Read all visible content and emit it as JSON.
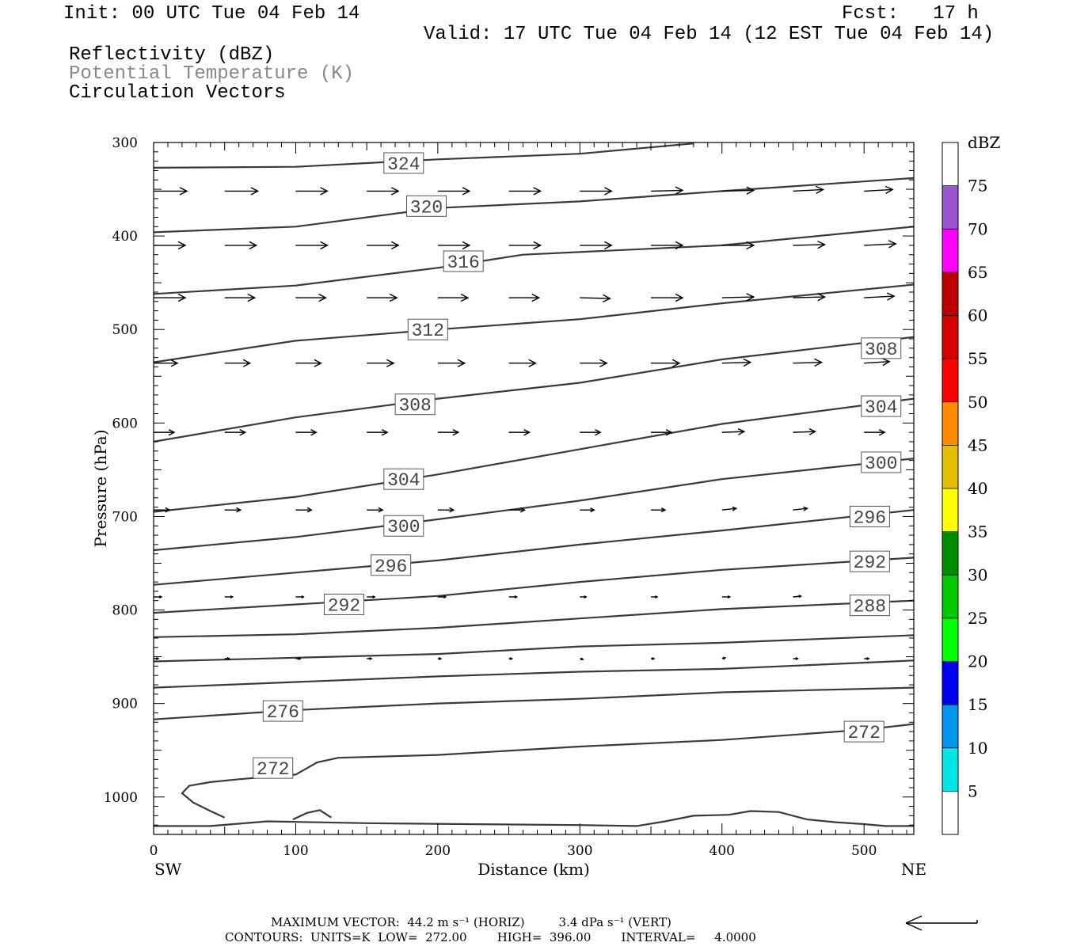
{
  "header": {
    "init": "Init: 00 UTC Tue 04 Feb 14",
    "fcst": "Fcst:   17 h",
    "valid": "Valid: 17 UTC Tue 04 Feb 14 (12 EST Tue 04 Feb 14)",
    "field1": "Reflectivity (dBZ)",
    "field2": "Potential Temperature (K)",
    "field3": "Circulation Vectors"
  },
  "footer": {
    "max_vector": "MAXIMUM VECTOR:  44.2 m s⁻¹ (HORIZ)         3.4 dPa s⁻¹ (VERT)",
    "contours": "CONTOURS:  UNITS=K  LOW=  272.00        HIGH=  396.00        INTERVAL=     4.0000"
  },
  "colors": {
    "contour": "#3a3a3a",
    "label_gray": "#888888"
  },
  "chart_data": {
    "type": "cross-section",
    "xlabel": "Distance (km)",
    "ylabel": "Pressure (hPa)",
    "x_left_end": "SW",
    "x_right_end": "NE",
    "xlim": [
      0,
      535
    ],
    "ylim": [
      1040,
      300
    ],
    "x_ticks": [
      0,
      100,
      200,
      300,
      400,
      500
    ],
    "y_ticks": [
      300,
      400,
      500,
      600,
      700,
      800,
      900,
      1000
    ],
    "colorbar": {
      "unit": "dBZ",
      "labels": [
        "5",
        "10",
        "15",
        "20",
        "25",
        "30",
        "35",
        "40",
        "45",
        "50",
        "55",
        "60",
        "65",
        "70",
        "75"
      ],
      "colors": [
        "#ffffff",
        "#00e5e5",
        "#0096f0",
        "#0000f0",
        "#00ff00",
        "#00c800",
        "#008c00",
        "#ffff00",
        "#e5be00",
        "#ff8c00",
        "#ff0000",
        "#d70000",
        "#bb0000",
        "#ff00ff",
        "#9955cc",
        "#ffffff"
      ]
    },
    "contours": [
      {
        "label": "324",
        "points": [
          [
            0,
            327
          ],
          [
            100,
            326
          ],
          [
            200,
            318
          ],
          [
            300,
            312
          ],
          [
            380,
            301
          ]
        ],
        "labels": [
          {
            "text": "324",
            "x": 176,
            "p": 322
          }
        ]
      },
      {
        "label": "320",
        "points": [
          [
            0,
            396
          ],
          [
            100,
            390
          ],
          [
            200,
            370
          ],
          [
            300,
            363
          ],
          [
            400,
            352
          ],
          [
            535,
            338
          ]
        ],
        "labels": [
          {
            "text": "320",
            "x": 192,
            "p": 368
          }
        ]
      },
      {
        "label": "316",
        "points": [
          [
            0,
            462
          ],
          [
            100,
            453
          ],
          [
            200,
            434
          ],
          [
            260,
            420
          ],
          [
            400,
            410
          ],
          [
            535,
            390
          ]
        ],
        "labels": [
          {
            "text": "316",
            "x": 218,
            "p": 427
          }
        ]
      },
      {
        "label": "312",
        "points": [
          [
            0,
            535
          ],
          [
            100,
            512
          ],
          [
            200,
            500
          ],
          [
            300,
            489
          ],
          [
            400,
            472
          ],
          [
            535,
            452
          ]
        ],
        "labels": [
          {
            "text": "312",
            "x": 193,
            "p": 500
          }
        ]
      },
      {
        "label": "308",
        "points": [
          [
            0,
            620
          ],
          [
            100,
            594
          ],
          [
            200,
            574
          ],
          [
            300,
            557
          ],
          [
            400,
            532
          ],
          [
            535,
            508
          ]
        ],
        "labels": [
          {
            "text": "308",
            "x": 184,
            "p": 580
          },
          {
            "text": "308",
            "x": 512,
            "p": 520
          }
        ]
      },
      {
        "label": "304",
        "points": [
          [
            0,
            695
          ],
          [
            100,
            679
          ],
          [
            200,
            655
          ],
          [
            300,
            628
          ],
          [
            400,
            601
          ],
          [
            535,
            574
          ]
        ],
        "labels": [
          {
            "text": "304",
            "x": 176,
            "p": 660
          },
          {
            "text": "304",
            "x": 512,
            "p": 582
          }
        ]
      },
      {
        "label": "300",
        "points": [
          [
            0,
            736
          ],
          [
            100,
            722
          ],
          [
            200,
            703
          ],
          [
            300,
            683
          ],
          [
            400,
            660
          ],
          [
            535,
            638
          ]
        ],
        "labels": [
          {
            "text": "300",
            "x": 176,
            "p": 710
          },
          {
            "text": "300",
            "x": 512,
            "p": 642
          }
        ]
      },
      {
        "label": "296",
        "points": [
          [
            0,
            773
          ],
          [
            100,
            760
          ],
          [
            200,
            747
          ],
          [
            300,
            730
          ],
          [
            400,
            715
          ],
          [
            535,
            693
          ]
        ],
        "labels": [
          {
            "text": "296",
            "x": 167,
            "p": 752
          },
          {
            "text": "296",
            "x": 504,
            "p": 700
          }
        ]
      },
      {
        "label": "292",
        "points": [
          [
            0,
            803
          ],
          [
            100,
            794
          ],
          [
            200,
            785
          ],
          [
            300,
            770
          ],
          [
            400,
            757
          ],
          [
            535,
            744
          ]
        ],
        "labels": [
          {
            "text": "292",
            "x": 134,
            "p": 794
          },
          {
            "text": "292",
            "x": 504,
            "p": 748
          }
        ]
      },
      {
        "label": "288",
        "points": [
          [
            0,
            829
          ],
          [
            100,
            826
          ],
          [
            200,
            819
          ],
          [
            300,
            809
          ],
          [
            400,
            799
          ],
          [
            535,
            790
          ]
        ],
        "labels": [
          {
            "text": "288",
            "x": 504,
            "p": 795
          }
        ]
      },
      {
        "label": "284",
        "points": [
          [
            0,
            855
          ],
          [
            100,
            851
          ],
          [
            200,
            847
          ],
          [
            300,
            839
          ],
          [
            400,
            835
          ],
          [
            535,
            827
          ]
        ],
        "labels": []
      },
      {
        "label": "280",
        "points": [
          [
            0,
            883
          ],
          [
            100,
            877
          ],
          [
            200,
            871
          ],
          [
            300,
            866
          ],
          [
            400,
            863
          ],
          [
            535,
            854
          ]
        ],
        "labels": []
      },
      {
        "label": "276",
        "points": [
          [
            0,
            917
          ],
          [
            100,
            907
          ],
          [
            200,
            900
          ],
          [
            300,
            895
          ],
          [
            400,
            888
          ],
          [
            535,
            883
          ]
        ],
        "labels": [
          {
            "text": "276",
            "x": 91,
            "p": 908
          }
        ]
      },
      {
        "label": "272",
        "points": [
          [
            535,
            922
          ],
          [
            500,
            928
          ],
          [
            400,
            939
          ],
          [
            300,
            946
          ],
          [
            200,
            955
          ],
          [
            130,
            958
          ],
          [
            115,
            963
          ],
          [
            100,
            976
          ],
          [
            60,
            981
          ],
          [
            40,
            984
          ],
          [
            25,
            988
          ],
          [
            20,
            996
          ],
          [
            28,
            1006
          ],
          [
            40,
            1015
          ],
          [
            50,
            1022
          ]
        ],
        "labels": [
          {
            "text": "272",
            "x": 84,
            "p": 969
          },
          {
            "text": "272",
            "x": 500,
            "p": 930
          }
        ]
      },
      {
        "label": "272b",
        "points": [
          [
            98,
            1024
          ],
          [
            108,
            1017
          ],
          [
            117,
            1014
          ],
          [
            125,
            1022
          ]
        ],
        "labels": []
      },
      {
        "label": "ground",
        "points": [
          [
            0,
            1031
          ],
          [
            40,
            1031
          ],
          [
            80,
            1026
          ],
          [
            150,
            1028
          ],
          [
            220,
            1029
          ],
          [
            300,
            1030
          ],
          [
            340,
            1031
          ],
          [
            360,
            1026
          ],
          [
            380,
            1020
          ],
          [
            405,
            1019
          ],
          [
            420,
            1015
          ],
          [
            440,
            1016
          ],
          [
            460,
            1024
          ],
          [
            480,
            1027
          ],
          [
            500,
            1029
          ],
          [
            515,
            1031
          ],
          [
            535,
            1031
          ]
        ],
        "labels": []
      }
    ],
    "vectors": [
      {
        "p": 352,
        "x": [
          0,
          50,
          100,
          150,
          200,
          250,
          300,
          350,
          400,
          450,
          500,
          550
        ],
        "dx": [
          42,
          42,
          40,
          40,
          40,
          40,
          40,
          40,
          40,
          38,
          36,
          36
        ],
        "dp": [
          0,
          0,
          0,
          0,
          0,
          0,
          0,
          -1,
          -1,
          -2,
          -2,
          -2
        ]
      },
      {
        "p": 410,
        "x": [
          0,
          50,
          100,
          150,
          200,
          250,
          300,
          350,
          400,
          450,
          500
        ],
        "dx": [
          40,
          40,
          40,
          40,
          40,
          40,
          40,
          40,
          40,
          40,
          40
        ],
        "dp": [
          0,
          0,
          0,
          0,
          0,
          0,
          0,
          0,
          0,
          -1,
          -2
        ]
      },
      {
        "p": 466,
        "x": [
          0,
          50,
          100,
          150,
          200,
          250,
          300,
          350,
          400,
          450,
          500
        ],
        "dx": [
          40,
          38,
          38,
          38,
          38,
          38,
          38,
          40,
          40,
          40,
          38
        ],
        "dp": [
          0,
          0,
          0,
          0,
          0,
          0,
          1,
          0,
          -1,
          -1,
          -2
        ]
      },
      {
        "p": 536,
        "x": [
          0,
          50,
          100,
          150,
          200,
          250,
          300,
          350,
          400,
          450,
          500
        ],
        "dx": [
          30,
          32,
          32,
          34,
          34,
          34,
          34,
          36,
          36,
          36,
          32
        ],
        "dp": [
          0,
          0,
          0,
          0,
          0,
          0,
          0,
          0,
          -1,
          -1,
          -2
        ]
      },
      {
        "p": 610,
        "x": [
          0,
          50,
          100,
          150,
          200,
          250,
          300,
          350,
          400,
          450,
          500
        ],
        "dx": [
          26,
          26,
          26,
          26,
          26,
          26,
          26,
          26,
          28,
          28,
          26
        ],
        "dp": [
          0,
          0,
          0,
          0,
          0,
          0,
          0,
          0,
          -1,
          -1,
          0
        ]
      },
      {
        "p": 693,
        "x": [
          0,
          50,
          100,
          150,
          200,
          250,
          300,
          350,
          400,
          450,
          500
        ],
        "dx": [
          20,
          20,
          20,
          20,
          20,
          20,
          18,
          18,
          18,
          18,
          14
        ],
        "dp": [
          0,
          0,
          0,
          0,
          0,
          0,
          0,
          0,
          -2,
          -2,
          0
        ]
      },
      {
        "p": 786,
        "x": [
          0,
          50,
          100,
          150,
          200,
          250,
          300,
          350,
          400,
          450,
          500
        ],
        "dx": [
          10,
          10,
          10,
          10,
          10,
          10,
          8,
          8,
          10,
          10,
          10
        ],
        "dp": [
          0,
          0,
          0,
          0,
          0,
          0,
          0,
          0,
          0,
          -1,
          0
        ]
      },
      {
        "p": 852,
        "x": [
          0,
          50,
          100,
          150,
          200,
          250,
          300,
          350,
          400,
          450,
          500
        ],
        "dx": [
          6,
          6,
          6,
          6,
          4,
          4,
          4,
          4,
          4,
          6,
          6
        ],
        "dp": [
          0,
          0,
          0,
          0,
          0,
          0,
          1,
          0,
          -1,
          0,
          0
        ]
      }
    ],
    "vector_scale_arrow": "←"
  }
}
